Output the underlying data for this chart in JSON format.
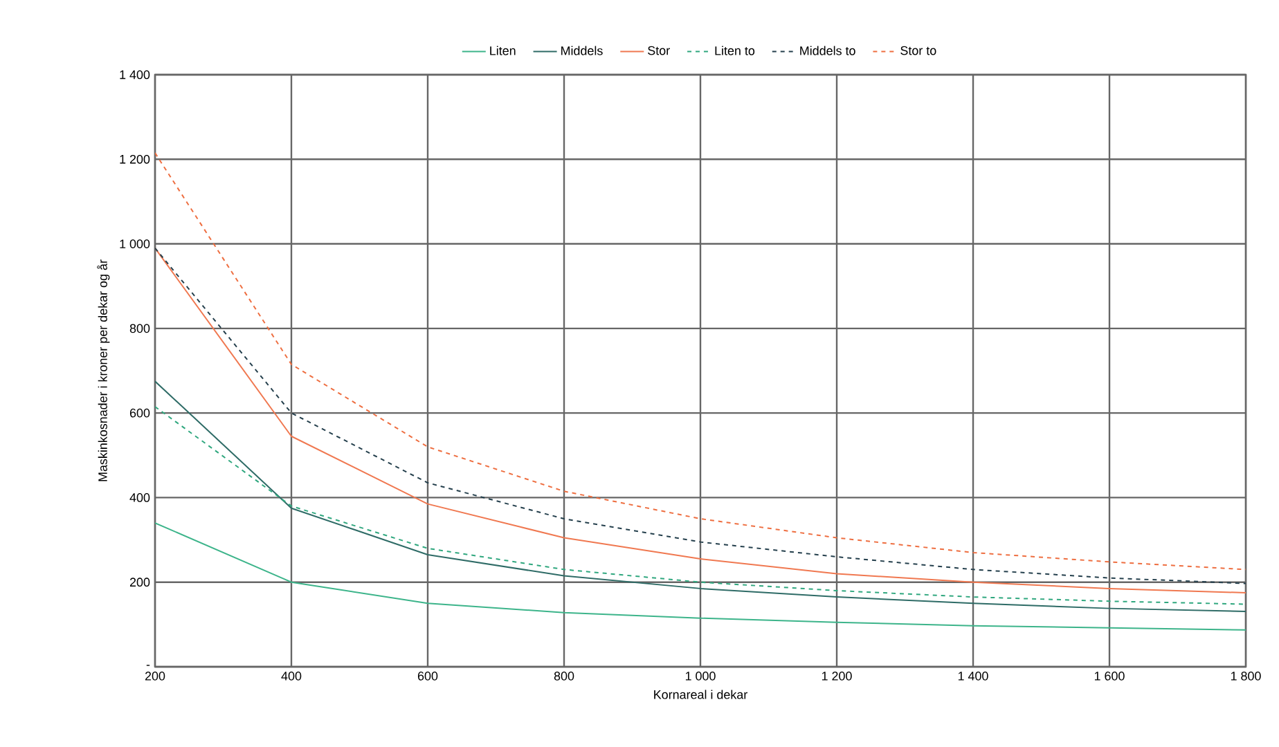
{
  "chart_data": {
    "type": "line",
    "xlabel": "Kornareal i dekar",
    "ylabel": "Maskinkosnader i kroner per dekar og år",
    "x": [
      200,
      400,
      600,
      800,
      1000,
      1200,
      1400,
      1600,
      1800
    ],
    "series": [
      {
        "name": "Liten",
        "color": "#3cb48a",
        "values": [
          340,
          200,
          150,
          128,
          115,
          105,
          97,
          92,
          87
        ]
      },
      {
        "name": "Middels",
        "color": "#2e6b66",
        "values": [
          675,
          375,
          265,
          215,
          185,
          165,
          150,
          138,
          131
        ]
      },
      {
        "name": "Stor",
        "color": "#f07850",
        "values": [
          990,
          545,
          385,
          305,
          255,
          220,
          200,
          185,
          175
        ]
      },
      {
        "name": "Liten to",
        "color": "#2fa77e",
        "line_style": "dashed",
        "values": [
          615,
          380,
          280,
          230,
          200,
          180,
          165,
          155,
          148
        ]
      },
      {
        "name": "Middels to",
        "color": "#243f4c",
        "line_style": "dashed",
        "values": [
          990,
          600,
          435,
          350,
          295,
          260,
          230,
          210,
          197
        ]
      },
      {
        "name": "Stor to",
        "color": "#ee6e40",
        "line_style": "dashed",
        "values": [
          1215,
          715,
          520,
          415,
          350,
          305,
          270,
          248,
          230
        ]
      }
    ],
    "xlim": [
      200,
      1800
    ],
    "xticks": [
      {
        "value": 200,
        "label": "200"
      },
      {
        "value": 400,
        "label": "400"
      },
      {
        "value": 600,
        "label": "600"
      },
      {
        "value": 800,
        "label": "800"
      },
      {
        "value": 1000,
        "label": "1 000"
      },
      {
        "value": 1200,
        "label": "1 200"
      },
      {
        "value": 1400,
        "label": "1 400"
      },
      {
        "value": 1600,
        "label": "1 600"
      },
      {
        "value": 1800,
        "label": "1 800"
      }
    ],
    "ylim": [
      0,
      1400
    ],
    "yticks": [
      {
        "value": 0,
        "label": "-"
      },
      {
        "value": 200,
        "label": "200"
      },
      {
        "value": 400,
        "label": "400"
      },
      {
        "value": 600,
        "label": "600"
      },
      {
        "value": 800,
        "label": "800"
      },
      {
        "value": 1000,
        "label": "1 000"
      },
      {
        "value": 1200,
        "label": "1 200"
      },
      {
        "value": 1400,
        "label": "1 400"
      }
    ],
    "grid": true,
    "legend": "top",
    "marker": "none",
    "line_style": "solid"
  }
}
